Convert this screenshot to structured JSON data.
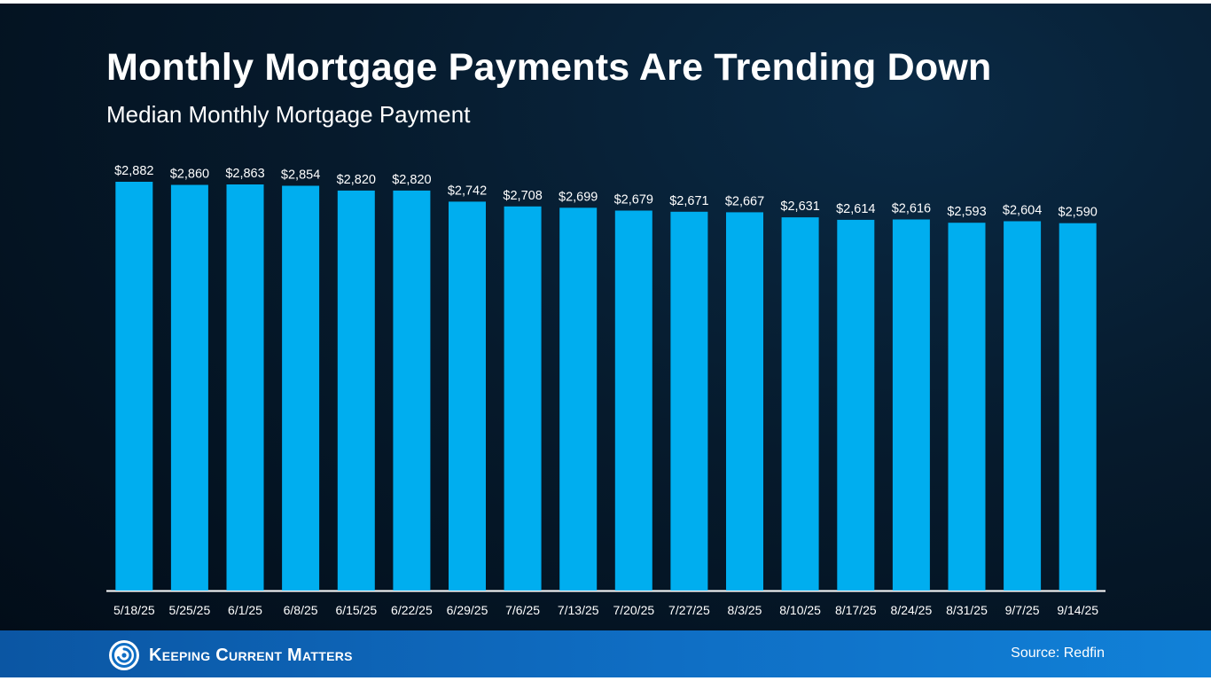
{
  "chart_data": {
    "type": "bar",
    "title": "Monthly Mortgage Payments Are Trending Down",
    "subtitle": "Median Monthly Mortgage Payment",
    "categories": [
      "5/18/25",
      "5/25/25",
      "6/1/25",
      "6/8/25",
      "6/15/25",
      "6/22/25",
      "6/29/25",
      "7/6/25",
      "7/13/25",
      "7/20/25",
      "7/27/25",
      "8/3/25",
      "8/10/25",
      "8/17/25",
      "8/24/25",
      "8/31/25",
      "9/7/25",
      "9/14/25"
    ],
    "values": [
      2882,
      2860,
      2863,
      2854,
      2820,
      2820,
      2742,
      2708,
      2699,
      2679,
      2671,
      2667,
      2631,
      2614,
      2616,
      2593,
      2604,
      2590
    ],
    "value_labels": [
      "$2,882",
      "$2,860",
      "$2,863",
      "$2,854",
      "$2,820",
      "$2,820",
      "$2,742",
      "$2,708",
      "$2,699",
      "$2,679",
      "$2,671",
      "$2,667",
      "$2,631",
      "$2,614",
      "$2,616",
      "$2,593",
      "$2,604",
      "$2,590"
    ],
    "xlabel": "",
    "ylabel": "",
    "ylim": [
      0,
      2882
    ],
    "grid": false,
    "bar_color": "#00aeef",
    "label_color": "#ffffff"
  },
  "footer": {
    "brand": "Keeping Current Matters",
    "source": "Source: Redfin",
    "logo_icon": "kcm-swirl-logo-icon",
    "background_color": "#0f6ec4"
  }
}
